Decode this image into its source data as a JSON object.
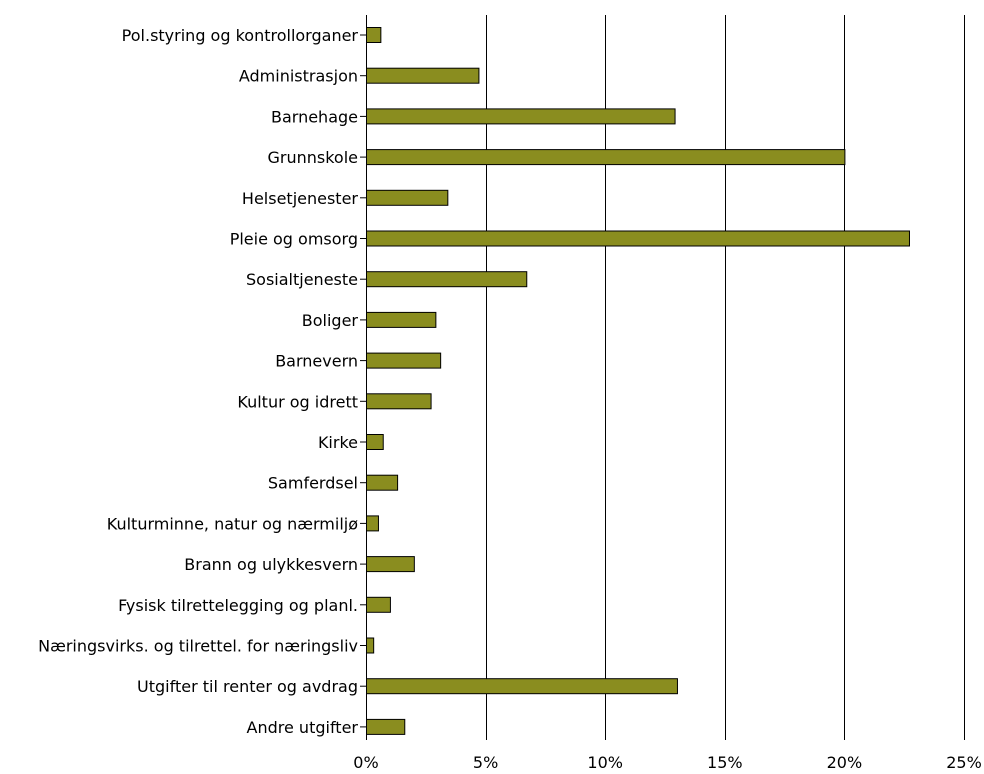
{
  "chart_data": {
    "type": "bar",
    "orientation": "horizontal",
    "categories": [
      "Pol.styring og kontrollorganer",
      "Administrasjon",
      "Barnehage",
      "Grunnskole",
      "Helsetjenester",
      "Pleie og omsorg",
      "Sosialtjeneste",
      "Boliger",
      "Barnevern",
      "Kultur og idrett",
      "Kirke",
      "Samferdsel",
      "Kulturminne, natur og nærmiljø",
      "Brann og ulykkesvern",
      "Fysisk tilrettelegging og planl.",
      "Næringsvirks. og tilrettel. for næringsliv",
      "Utgifter til renter og avdrag",
      "Andre utgifter"
    ],
    "values": [
      0.6,
      4.7,
      12.9,
      20.0,
      3.4,
      22.7,
      6.7,
      2.9,
      3.1,
      2.7,
      0.7,
      1.3,
      0.5,
      2.0,
      1.0,
      0.3,
      13.0,
      1.6
    ],
    "xlim": [
      0,
      25
    ],
    "xticks": [
      0,
      5,
      10,
      15,
      20,
      25
    ],
    "xtick_labels": [
      "0%",
      "5%",
      "10%",
      "15%",
      "20%",
      "25%"
    ],
    "grid": true,
    "bar_color": "#8a8d1f",
    "title": "",
    "xlabel": "",
    "ylabel": ""
  }
}
